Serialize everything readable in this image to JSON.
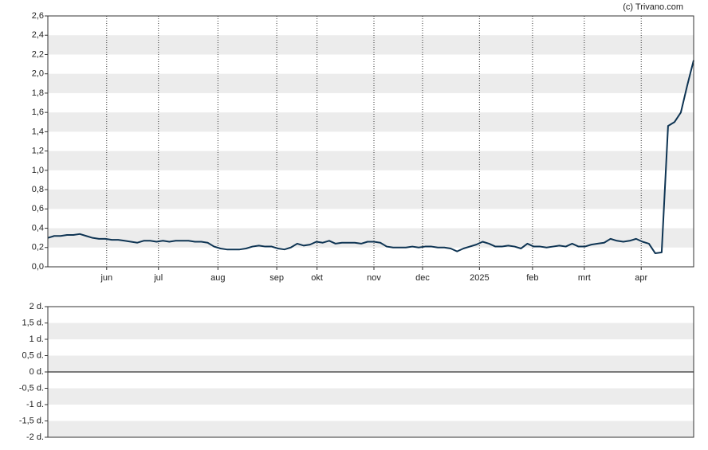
{
  "chart_data": [
    {
      "type": "line",
      "credit": "(c) Trivano.com",
      "series": [
        {
          "color": "#0e3453",
          "values": [
            0.3,
            0.32,
            0.32,
            0.33,
            0.33,
            0.34,
            0.32,
            0.3,
            0.29,
            0.29,
            0.28,
            0.28,
            0.27,
            0.26,
            0.25,
            0.27,
            0.27,
            0.26,
            0.27,
            0.26,
            0.27,
            0.27,
            0.27,
            0.26,
            0.26,
            0.25,
            0.21,
            0.19,
            0.18,
            0.18,
            0.18,
            0.19,
            0.21,
            0.22,
            0.21,
            0.21,
            0.19,
            0.18,
            0.2,
            0.24,
            0.22,
            0.23,
            0.26,
            0.25,
            0.27,
            0.24,
            0.25,
            0.25,
            0.25,
            0.24,
            0.26,
            0.26,
            0.25,
            0.21,
            0.2,
            0.2,
            0.2,
            0.21,
            0.2,
            0.21,
            0.21,
            0.2,
            0.2,
            0.19,
            0.16,
            0.19,
            0.21,
            0.23,
            0.26,
            0.24,
            0.21,
            0.21,
            0.22,
            0.21,
            0.19,
            0.24,
            0.21,
            0.21,
            0.2,
            0.21,
            0.22,
            0.21,
            0.24,
            0.21,
            0.21,
            0.23,
            0.24,
            0.25,
            0.29,
            0.27,
            0.26,
            0.27,
            0.29,
            0.26,
            0.24,
            0.14,
            0.15,
            1.46,
            1.5,
            1.6,
            1.88,
            2.14
          ]
        }
      ],
      "xlim": [
        0,
        101
      ],
      "xticks": [
        {
          "value": 9.2,
          "label": "jun"
        },
        {
          "value": 17.3,
          "label": "jul"
        },
        {
          "value": 26.6,
          "label": "aug"
        },
        {
          "value": 35.8,
          "label": "sep"
        },
        {
          "value": 42.1,
          "label": "okt"
        },
        {
          "value": 51.0,
          "label": "nov"
        },
        {
          "value": 58.6,
          "label": "dec"
        },
        {
          "value": 67.5,
          "label": "2025"
        },
        {
          "value": 75.8,
          "label": "feb"
        },
        {
          "value": 83.9,
          "label": "mrt"
        },
        {
          "value": 92.8,
          "label": "apr"
        }
      ],
      "ylim": [
        0,
        2.6
      ],
      "yticks": [
        {
          "value": 0,
          "label": "0,0"
        },
        {
          "value": 0.2,
          "label": "0,2"
        },
        {
          "value": 0.4,
          "label": "0,4"
        },
        {
          "value": 0.6,
          "label": "0,6"
        },
        {
          "value": 0.8,
          "label": "0,8"
        },
        {
          "value": 1.0,
          "label": "1,0"
        },
        {
          "value": 1.2,
          "label": "1,2"
        },
        {
          "value": 1.4,
          "label": "1,4"
        },
        {
          "value": 1.6,
          "label": "1,6"
        },
        {
          "value": 1.8,
          "label": "1,8"
        },
        {
          "value": 2.0,
          "label": "2,0"
        },
        {
          "value": 2.2,
          "label": "2,2"
        },
        {
          "value": 2.4,
          "label": "2,4"
        },
        {
          "value": 2.6,
          "label": "2,6"
        }
      ]
    },
    {
      "type": "line",
      "ylim": [
        -2,
        2
      ],
      "yticks": [
        {
          "value": -2,
          "label": "-2 d."
        },
        {
          "value": -1.5,
          "label": "-1,5 d."
        },
        {
          "value": -1,
          "label": "-1 d."
        },
        {
          "value": -0.5,
          "label": "-0,5 d."
        },
        {
          "value": 0,
          "label": "0 d."
        },
        {
          "value": 0.5,
          "label": "0,5 d."
        },
        {
          "value": 1,
          "label": "1 d."
        },
        {
          "value": 1.5,
          "label": "1,5 d."
        },
        {
          "value": 2,
          "label": "2 d."
        }
      ]
    }
  ]
}
